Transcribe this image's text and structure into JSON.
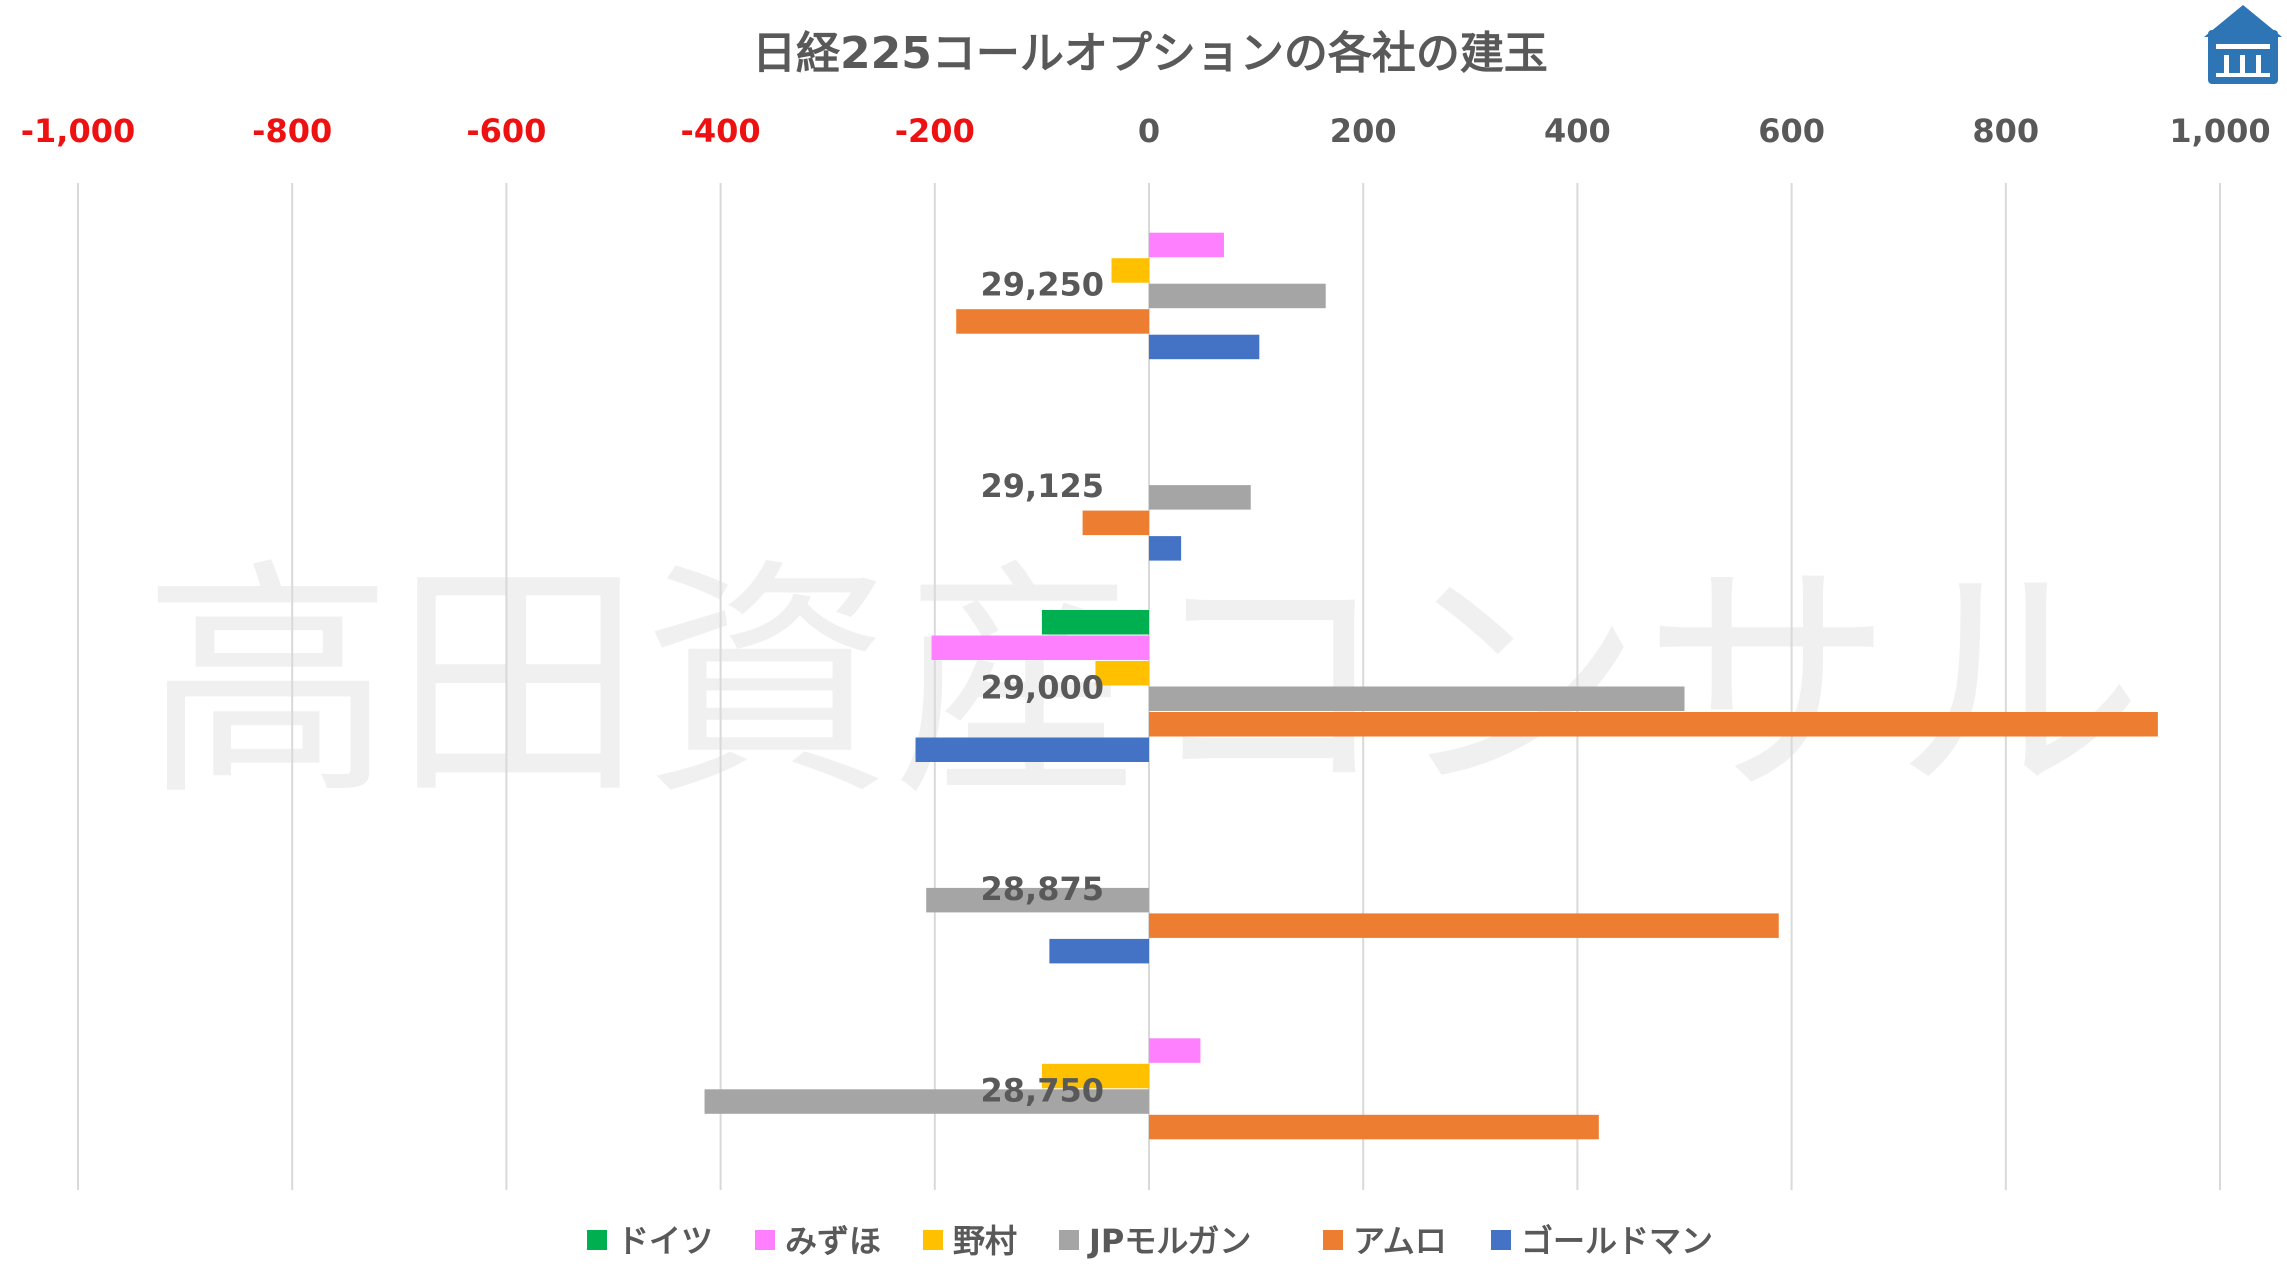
{
  "title": "日経225コールオプションの各社の建玉",
  "watermark": "高田資産コンサル",
  "logo_icon": "house-logo-icon",
  "colors": {
    "negative_tick": "#ee1111",
    "positive_tick": "#595959",
    "grid": "#d9d9d9"
  },
  "chart_data": {
    "type": "bar",
    "orientation": "horizontal",
    "title": "日経225コールオプションの各社の建玉",
    "xlim": [
      -1000,
      1000
    ],
    "x_ticks": [
      "-1,000",
      "-800",
      "-600",
      "-400",
      "-200",
      "0",
      "200",
      "400",
      "600",
      "800",
      "1,000"
    ],
    "x_axis_position": "top",
    "grid": true,
    "legend_position": "bottom",
    "categories": [
      "29,250",
      "29,125",
      "29,000",
      "28,875",
      "28,750"
    ],
    "series": [
      {
        "name": "ドイツ",
        "color": "#00b050",
        "values": [
          0,
          0,
          -100,
          0,
          0
        ]
      },
      {
        "name": "みずほ",
        "color": "#ff80ff",
        "values": [
          70,
          0,
          -203,
          0,
          48
        ]
      },
      {
        "name": "野村",
        "color": "#ffc000",
        "values": [
          -35,
          0,
          -50,
          0,
          -100
        ]
      },
      {
        "name": "JPモルガン",
        "color": "#a5a5a5",
        "values": [
          165,
          95,
          500,
          -208,
          -415
        ]
      },
      {
        "name": "アムロ",
        "color": "#ed7d31",
        "values": [
          -180,
          -62,
          942,
          588,
          420
        ]
      },
      {
        "name": "ゴールドマン",
        "color": "#4472c4",
        "values": [
          103,
          30,
          -218,
          -93,
          0
        ]
      }
    ]
  }
}
